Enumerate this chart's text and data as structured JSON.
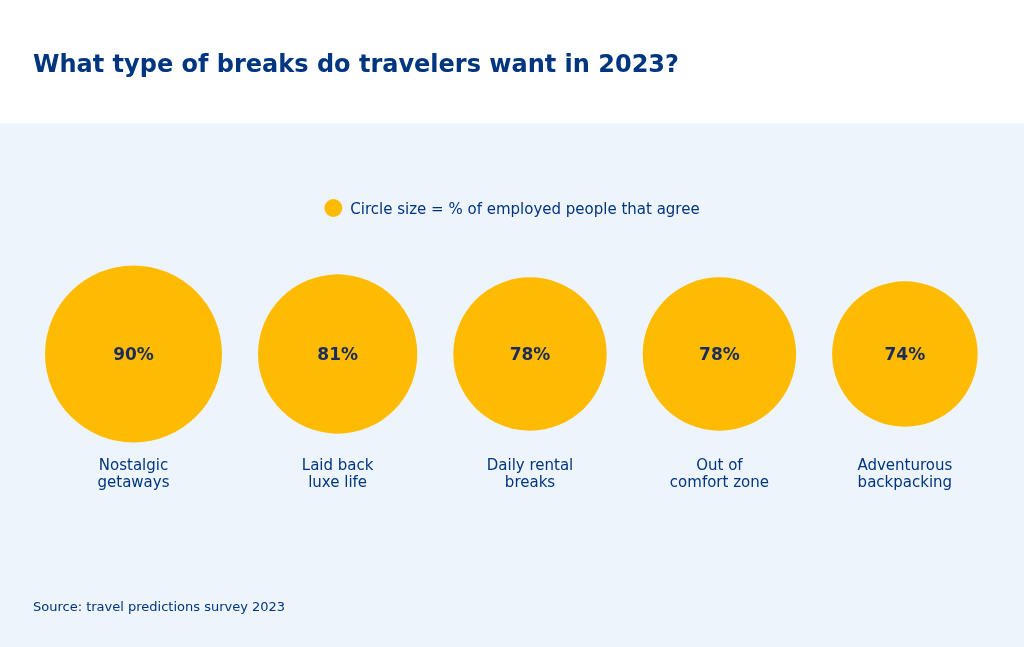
{
  "chart_data": {
    "type": "other",
    "title": "What type of breaks do travelers want in 2023?",
    "legend_title": "Circle size = % of employed people that agree",
    "categories": [
      "Nostalgic\ngetaways",
      "Laid back\nluxe life",
      "Daily rental\nbreaks",
      "Out of\ncomfort zone",
      "Adventurous\nbackpacking"
    ],
    "values": [
      90,
      81,
      78,
      78,
      74
    ],
    "value_labels": [
      "90%",
      "81%",
      "78%",
      "78%",
      "74%"
    ],
    "color": "#febb02",
    "annotations": [
      "Source: travel predictions survey 2023"
    ]
  }
}
